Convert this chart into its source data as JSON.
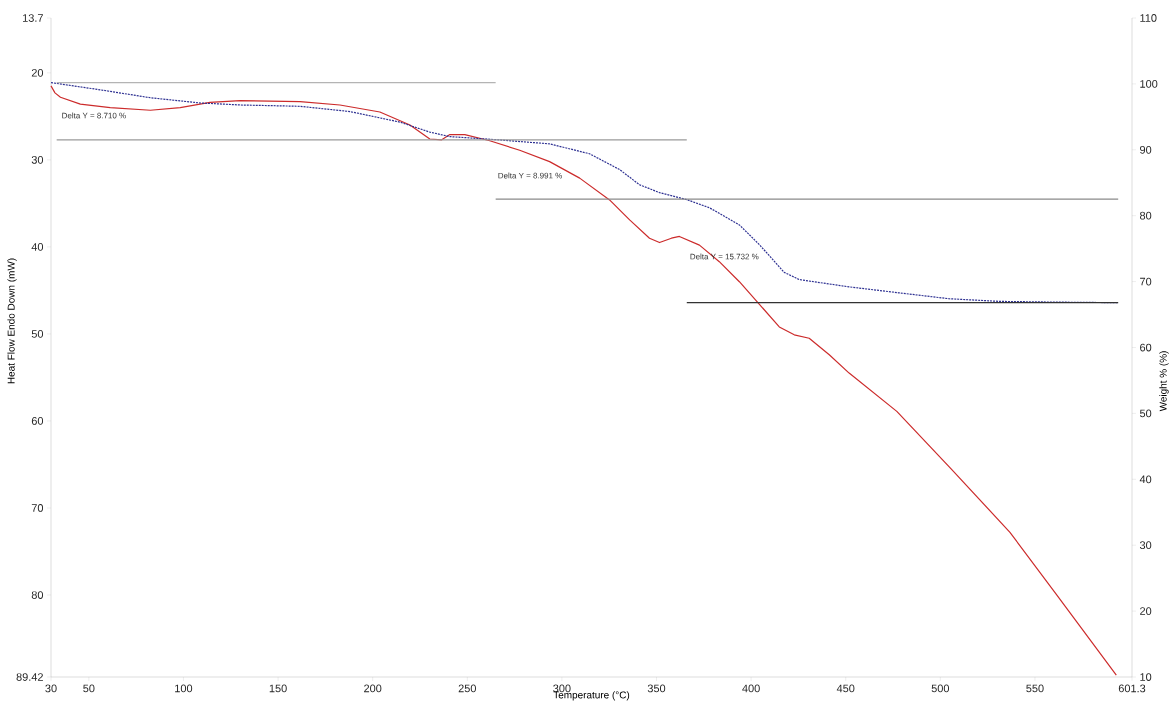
{
  "chart_data": {
    "type": "line",
    "xlabel": "Temperature (°C)",
    "ylabel": "Heat Flow Endo Down (mW)",
    "y2label": "Weight % (%)",
    "xlim": [
      30,
      601.3
    ],
    "xticks": [
      30,
      50,
      100,
      150,
      200,
      250,
      300,
      350,
      400,
      450,
      500,
      550,
      601.3
    ],
    "ylim": [
      89.42,
      13.7
    ],
    "yticks": [
      13.7,
      20,
      30,
      40,
      50,
      60,
      70,
      80,
      89.42
    ],
    "y2lim": [
      10,
      110
    ],
    "y2ticks": [
      10,
      20,
      30,
      40,
      50,
      60,
      70,
      80,
      90,
      100,
      110
    ],
    "grid": false,
    "marker": "none",
    "series": [
      {
        "color": "#cc2b2b",
        "line_style": "solid",
        "x": [
          30,
          32.1,
          35,
          45.5,
          61.3,
          82.5,
          98.3,
          114,
          130,
          161.6,
          182.7,
          203.8,
          219.7,
          230.2,
          236.5,
          240.8,
          248.7,
          261.9,
          277.7,
          293.5,
          309.4,
          325.2,
          335.8,
          346.3,
          351.6,
          357.9,
          362.1,
          372.7,
          383.2,
          393.8,
          404.4,
          414.9,
          422.8,
          430.7,
          441.3,
          451.8,
          477,
          505.7,
          536.8,
          561.6,
          593
        ],
        "values": [
          21.5,
          22.3,
          22.8,
          23.6,
          24.0,
          24.3,
          24.0,
          23.4,
          23.2,
          23.3,
          23.7,
          24.5,
          26.0,
          27.6,
          27.7,
          27.1,
          27.1,
          27.8,
          28.9,
          30.2,
          32.1,
          34.6,
          36.9,
          39.0,
          39.5,
          39.0,
          38.8,
          39.8,
          41.7,
          44.0,
          46.6,
          49.2,
          50.1,
          50.5,
          52.4,
          54.5,
          58.9,
          65.5,
          72.8,
          80.0,
          89.2
        ]
      },
      {
        "color": "#2e3192",
        "line_style": "dashed",
        "axis": "y2",
        "x": [
          30,
          56,
          82.5,
          109,
          130,
          161.6,
          188,
          214.4,
          230,
          240.8,
          267,
          293.5,
          314.6,
          330.5,
          341,
          351.6,
          366.4,
          378,
          393.8,
          404.4,
          417.5,
          425.5,
          451.8,
          478,
          504.6,
          531,
          557,
          593.8
        ],
        "values": [
          100.2,
          99.1,
          97.9,
          97.1,
          96.8,
          96.6,
          95.8,
          94.2,
          92.7,
          92.0,
          91.5,
          90.9,
          89.4,
          87.0,
          84.7,
          83.5,
          82.4,
          81.2,
          78.6,
          75.6,
          71.4,
          70.3,
          69.2,
          68.3,
          67.4,
          67.0,
          66.9,
          66.8
        ]
      },
      {
        "color": "#b4b4b4",
        "line_style": "solid",
        "axis": "y2",
        "x": [
          33,
          265
        ],
        "values": [
          100.2,
          100.2
        ]
      },
      {
        "color": "#9a9a9a",
        "line_style": "solid",
        "axis": "y2",
        "x": [
          33,
          366
        ],
        "values": [
          91.5,
          91.5
        ]
      },
      {
        "color": "#8a8a8a",
        "line_style": "solid",
        "axis": "y2",
        "x": [
          265,
          594
        ],
        "values": [
          82.5,
          82.5
        ]
      },
      {
        "color": "#333333",
        "line_style": "solid",
        "axis": "y2",
        "x": [
          366,
          594
        ],
        "values": [
          66.8,
          66.8
        ]
      }
    ],
    "annotations": [
      "Delta Y = 8.710 %",
      "Delta Y = 8.991 %",
      "Delta Y = 15.732 %"
    ]
  }
}
